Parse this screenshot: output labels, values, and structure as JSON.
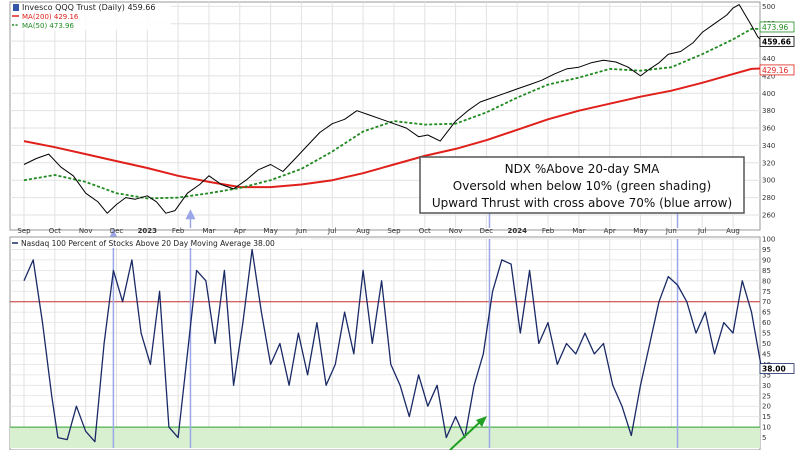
{
  "colors": {
    "price": "#000000",
    "ma200": "#e0201a",
    "ma50": "#1f8a1f",
    "breadth": "#1a2a66",
    "thrust_arrow": "#9aa6e8",
    "oversold_fill": "#d8f0d0",
    "oversold_line": "#2ea02e",
    "overbought_line": "#cc3333",
    "grid": "#e2e2e2",
    "green_arrow": "#22a022"
  },
  "annotation": {
    "line1": "NDX %Above 20-day SMA",
    "line2": "Oversold when below 10% (green shading)",
    "line3": "Upward Thrust with cross above 70% (blue arrow)"
  },
  "chart_data": [
    {
      "type": "line",
      "panel": "price",
      "title": "Invesco QQQ Trust (Daily) 459.66",
      "legend": [
        {
          "label": "MA(200) 429.16",
          "color": "#e0201a",
          "style": "solid"
        },
        {
          "label": "MA(50) 473.96",
          "color": "#1f8a1f",
          "style": "dashed"
        }
      ],
      "ylim": [
        245,
        505
      ],
      "y_ticks": [
        260,
        280,
        300,
        320,
        340,
        360,
        380,
        400,
        420,
        440,
        460,
        480,
        500
      ],
      "x_ticks": [
        "Sep",
        "Oct",
        "Nov",
        "Dec",
        "2023",
        "Feb",
        "Mar",
        "Apr",
        "May",
        "Jun",
        "Jul",
        "Aug",
        "Sep",
        "Oct",
        "Nov",
        "Dec",
        "2024",
        "Feb",
        "Mar",
        "Apr",
        "May",
        "Jun",
        "Jul",
        "Aug"
      ],
      "last_value_labels": [
        "473.96",
        "459.66",
        "429.16"
      ],
      "series": [
        {
          "name": "QQQ",
          "points": [
            [
              0,
              318
            ],
            [
              0.4,
              325
            ],
            [
              0.8,
              330
            ],
            [
              1.2,
              315
            ],
            [
              1.6,
              305
            ],
            [
              2.0,
              285
            ],
            [
              2.4,
              275
            ],
            [
              2.7,
              262
            ],
            [
              3.0,
              272
            ],
            [
              3.3,
              280
            ],
            [
              3.6,
              278
            ],
            [
              4.0,
              282
            ],
            [
              4.3,
              275
            ],
            [
              4.6,
              262
            ],
            [
              4.9,
              265
            ],
            [
              5.3,
              285
            ],
            [
              5.7,
              295
            ],
            [
              6.0,
              305
            ],
            [
              6.4,
              295
            ],
            [
              6.8,
              290
            ],
            [
              7.2,
              300
            ],
            [
              7.6,
              312
            ],
            [
              8.0,
              318
            ],
            [
              8.4,
              310
            ],
            [
              8.8,
              325
            ],
            [
              9.2,
              340
            ],
            [
              9.6,
              355
            ],
            [
              10.0,
              365
            ],
            [
              10.4,
              370
            ],
            [
              10.8,
              380
            ],
            [
              11.2,
              375
            ],
            [
              11.6,
              370
            ],
            [
              12.0,
              365
            ],
            [
              12.4,
              360
            ],
            [
              12.8,
              350
            ],
            [
              13.1,
              352
            ],
            [
              13.5,
              345
            ],
            [
              14.0,
              368
            ],
            [
              14.4,
              380
            ],
            [
              14.8,
              390
            ],
            [
              15.2,
              395
            ],
            [
              15.6,
              400
            ],
            [
              16.0,
              405
            ],
            [
              16.4,
              410
            ],
            [
              16.8,
              415
            ],
            [
              17.2,
              422
            ],
            [
              17.6,
              428
            ],
            [
              18.0,
              430
            ],
            [
              18.4,
              435
            ],
            [
              18.8,
              438
            ],
            [
              19.2,
              436
            ],
            [
              19.6,
              430
            ],
            [
              20.0,
              420
            ],
            [
              20.3,
              428
            ],
            [
              20.6,
              435
            ],
            [
              20.9,
              445
            ],
            [
              21.3,
              448
            ],
            [
              21.7,
              458
            ],
            [
              22.0,
              470
            ],
            [
              22.4,
              480
            ],
            [
              22.8,
              490
            ],
            [
              23.0,
              498
            ],
            [
              23.2,
              502
            ],
            [
              23.4,
              490
            ],
            [
              23.6,
              478
            ],
            [
              23.8,
              465
            ],
            [
              24.0,
              458
            ],
            [
              24.2,
              460
            ]
          ]
        },
        {
          "name": "MA(50)",
          "points": [
            [
              0,
              300
            ],
            [
              1.0,
              306
            ],
            [
              2.0,
              298
            ],
            [
              3.0,
              285
            ],
            [
              4.0,
              279
            ],
            [
              5.0,
              280
            ],
            [
              6.0,
              285
            ],
            [
              7.0,
              291
            ],
            [
              8.0,
              300
            ],
            [
              9.0,
              313
            ],
            [
              10.0,
              333
            ],
            [
              11.0,
              356
            ],
            [
              12.0,
              368
            ],
            [
              13.0,
              364
            ],
            [
              14.0,
              365
            ],
            [
              15.0,
              378
            ],
            [
              16.0,
              395
            ],
            [
              17.0,
              410
            ],
            [
              18.0,
              418
            ],
            [
              19.0,
              428
            ],
            [
              20.0,
              426
            ],
            [
              21.0,
              430
            ],
            [
              22.0,
              445
            ],
            [
              23.0,
              462
            ],
            [
              23.6,
              474
            ],
            [
              24.2,
              474
            ]
          ]
        },
        {
          "name": "MA(200)",
          "points": [
            [
              0,
              345
            ],
            [
              1.0,
              338
            ],
            [
              2.0,
              330
            ],
            [
              3.0,
              322
            ],
            [
              4.0,
              314
            ],
            [
              5.0,
              305
            ],
            [
              6.0,
              298
            ],
            [
              7.0,
              292
            ],
            [
              8.0,
              292
            ],
            [
              9.0,
              295
            ],
            [
              10.0,
              300
            ],
            [
              11.0,
              308
            ],
            [
              12.0,
              318
            ],
            [
              13.0,
              328
            ],
            [
              14.0,
              336
            ],
            [
              15.0,
              346
            ],
            [
              16.0,
              358
            ],
            [
              17.0,
              370
            ],
            [
              18.0,
              380
            ],
            [
              19.0,
              388
            ],
            [
              20.0,
              396
            ],
            [
              21.0,
              403
            ],
            [
              22.0,
              412
            ],
            [
              23.0,
              422
            ],
            [
              23.6,
              428
            ],
            [
              24.2,
              429
            ]
          ]
        }
      ]
    },
    {
      "type": "line",
      "panel": "breadth",
      "title": "Nasdaq 100 Percent of Stocks Above 20 Day Moving Average 38.00",
      "ylim": [
        0,
        100
      ],
      "y_ticks": [
        5,
        10,
        15,
        20,
        25,
        30,
        35,
        40,
        45,
        50,
        55,
        60,
        65,
        70,
        75,
        80,
        85,
        90,
        95,
        100
      ],
      "last_value_label": "38.00",
      "reference_lines": [
        10,
        70
      ],
      "thrust_signals": [
        2.9,
        5.4,
        15.1,
        21.2
      ],
      "series": [
        {
          "name": "Nasdaq 100 % Above 20-day SMA",
          "points": [
            [
              0,
              80
            ],
            [
              0.3,
              90
            ],
            [
              0.6,
              60
            ],
            [
              0.9,
              25
            ],
            [
              1.1,
              5
            ],
            [
              1.4,
              4
            ],
            [
              1.7,
              20
            ],
            [
              2.0,
              8
            ],
            [
              2.3,
              3
            ],
            [
              2.6,
              50
            ],
            [
              2.9,
              85
            ],
            [
              3.2,
              70
            ],
            [
              3.5,
              90
            ],
            [
              3.8,
              55
            ],
            [
              4.1,
              40
            ],
            [
              4.4,
              75
            ],
            [
              4.7,
              10
            ],
            [
              5.0,
              5
            ],
            [
              5.3,
              45
            ],
            [
              5.6,
              85
            ],
            [
              5.9,
              80
            ],
            [
              6.2,
              50
            ],
            [
              6.5,
              85
            ],
            [
              6.8,
              30
            ],
            [
              7.1,
              60
            ],
            [
              7.4,
              95
            ],
            [
              7.7,
              65
            ],
            [
              8.0,
              40
            ],
            [
              8.3,
              50
            ],
            [
              8.6,
              30
            ],
            [
              8.9,
              55
            ],
            [
              9.2,
              35
            ],
            [
              9.5,
              60
            ],
            [
              9.8,
              30
            ],
            [
              10.1,
              40
            ],
            [
              10.4,
              65
            ],
            [
              10.7,
              45
            ],
            [
              11.0,
              85
            ],
            [
              11.3,
              50
            ],
            [
              11.6,
              80
            ],
            [
              11.9,
              40
            ],
            [
              12.2,
              30
            ],
            [
              12.5,
              15
            ],
            [
              12.8,
              35
            ],
            [
              13.1,
              20
            ],
            [
              13.4,
              30
            ],
            [
              13.7,
              5
            ],
            [
              14.0,
              15
            ],
            [
              14.3,
              5
            ],
            [
              14.6,
              30
            ],
            [
              14.9,
              45
            ],
            [
              15.2,
              75
            ],
            [
              15.5,
              90
            ],
            [
              15.8,
              88
            ],
            [
              16.1,
              55
            ],
            [
              16.4,
              85
            ],
            [
              16.7,
              50
            ],
            [
              17.0,
              60
            ],
            [
              17.3,
              40
            ],
            [
              17.6,
              50
            ],
            [
              17.9,
              45
            ],
            [
              18.2,
              55
            ],
            [
              18.5,
              45
            ],
            [
              18.8,
              50
            ],
            [
              19.1,
              30
            ],
            [
              19.4,
              20
            ],
            [
              19.7,
              6
            ],
            [
              20.0,
              30
            ],
            [
              20.3,
              50
            ],
            [
              20.6,
              70
            ],
            [
              20.9,
              82
            ],
            [
              21.2,
              78
            ],
            [
              21.5,
              70
            ],
            [
              21.8,
              55
            ],
            [
              22.1,
              65
            ],
            [
              22.4,
              45
            ],
            [
              22.7,
              60
            ],
            [
              23.0,
              55
            ],
            [
              23.3,
              80
            ],
            [
              23.6,
              65
            ],
            [
              23.9,
              40
            ],
            [
              24.2,
              38
            ]
          ]
        }
      ]
    }
  ]
}
